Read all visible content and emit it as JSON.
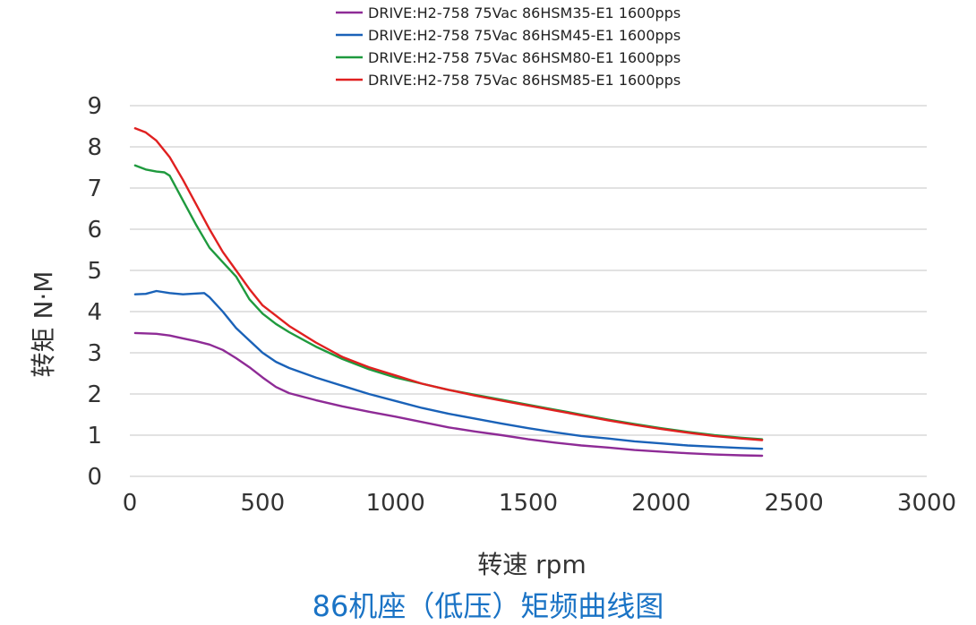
{
  "chart_data": {
    "type": "line",
    "title": "86机座（低压）矩频曲线图",
    "xlabel": "转速 rpm",
    "ylabel": "转矩 N·M",
    "xlim": [
      0,
      3000
    ],
    "ylim": [
      0,
      9
    ],
    "x_ticks": [
      0,
      500,
      1000,
      1500,
      2000,
      2500,
      3000
    ],
    "y_ticks": [
      0,
      1,
      2,
      3,
      4,
      5,
      6,
      7,
      8,
      9
    ],
    "grid": "horizontal",
    "legend_position": "top-center",
    "series": [
      {
        "name": "DRIVE:H2-758 75Vac 86HSM35-E1 1600pps",
        "color": "#8e2b96",
        "x": [
          20,
          100,
          150,
          200,
          250,
          300,
          350,
          400,
          450,
          500,
          550,
          600,
          700,
          800,
          900,
          1000,
          1100,
          1200,
          1300,
          1400,
          1500,
          1600,
          1700,
          1800,
          1900,
          2000,
          2100,
          2200,
          2300,
          2380
        ],
        "y": [
          3.48,
          3.46,
          3.42,
          3.35,
          3.28,
          3.2,
          3.07,
          2.87,
          2.65,
          2.4,
          2.17,
          2.02,
          1.85,
          1.7,
          1.57,
          1.45,
          1.32,
          1.19,
          1.09,
          1.0,
          0.9,
          0.82,
          0.75,
          0.7,
          0.64,
          0.6,
          0.56,
          0.53,
          0.51,
          0.5
        ]
      },
      {
        "name": "DRIVE:H2-758 75Vac 86HSM45-E1 1600pps",
        "color": "#1a62b8",
        "x": [
          20,
          60,
          100,
          150,
          200,
          250,
          280,
          300,
          350,
          400,
          450,
          500,
          550,
          600,
          700,
          800,
          900,
          1000,
          1100,
          1200,
          1300,
          1400,
          1500,
          1600,
          1700,
          1800,
          1900,
          2000,
          2100,
          2200,
          2300,
          2380
        ],
        "y": [
          4.42,
          4.43,
          4.5,
          4.45,
          4.42,
          4.44,
          4.45,
          4.35,
          4.0,
          3.6,
          3.3,
          3.0,
          2.78,
          2.63,
          2.4,
          2.2,
          2.0,
          1.83,
          1.66,
          1.52,
          1.4,
          1.28,
          1.17,
          1.07,
          0.98,
          0.92,
          0.85,
          0.8,
          0.75,
          0.72,
          0.69,
          0.67
        ]
      },
      {
        "name": "DRIVE:H2-758 75Vac 86HSM80-E1 1600pps",
        "color": "#1f9a3e",
        "x": [
          20,
          60,
          100,
          130,
          150,
          200,
          250,
          300,
          350,
          400,
          450,
          500,
          550,
          600,
          700,
          800,
          900,
          1000,
          1100,
          1200,
          1300,
          1400,
          1500,
          1600,
          1700,
          1800,
          1900,
          2000,
          2100,
          2200,
          2300,
          2380
        ],
        "y": [
          7.55,
          7.45,
          7.4,
          7.38,
          7.3,
          6.7,
          6.1,
          5.55,
          5.2,
          4.85,
          4.3,
          3.95,
          3.7,
          3.5,
          3.15,
          2.85,
          2.6,
          2.4,
          2.25,
          2.1,
          1.98,
          1.86,
          1.74,
          1.62,
          1.5,
          1.38,
          1.27,
          1.17,
          1.08,
          1.0,
          0.94,
          0.9
        ]
      },
      {
        "name": "DRIVE:H2-758 75Vac 86HSM85-E1 1600pps",
        "color": "#e02020",
        "x": [
          20,
          60,
          100,
          150,
          200,
          250,
          300,
          350,
          400,
          450,
          500,
          550,
          600,
          700,
          800,
          900,
          1000,
          1100,
          1200,
          1300,
          1400,
          1500,
          1600,
          1700,
          1800,
          1900,
          2000,
          2100,
          2200,
          2300,
          2380
        ],
        "y": [
          8.45,
          8.35,
          8.15,
          7.75,
          7.2,
          6.6,
          6.0,
          5.45,
          5.0,
          4.55,
          4.15,
          3.9,
          3.65,
          3.25,
          2.9,
          2.65,
          2.45,
          2.25,
          2.1,
          1.96,
          1.84,
          1.72,
          1.6,
          1.48,
          1.36,
          1.25,
          1.15,
          1.06,
          0.98,
          0.92,
          0.88
        ]
      }
    ]
  }
}
